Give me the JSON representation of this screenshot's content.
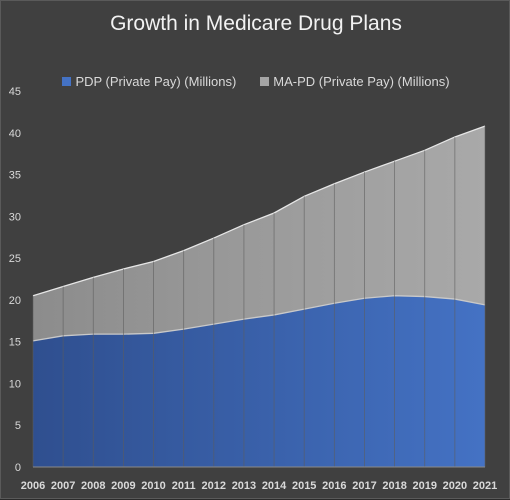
{
  "chart_data": {
    "type": "area",
    "stacked": true,
    "title": "Growth in Medicare Drug Plans",
    "xlabel": "",
    "ylabel": "",
    "ylim": [
      0,
      45
    ],
    "yticks": [
      0,
      5,
      10,
      15,
      20,
      25,
      30,
      35,
      40,
      45
    ],
    "categories": [
      "2006",
      "2007",
      "2008",
      "2009",
      "2010",
      "2011",
      "2012",
      "2013",
      "2014",
      "2015",
      "2016",
      "2017",
      "2018",
      "2019",
      "2020",
      "2021"
    ],
    "series": [
      {
        "name": "PDP (Private Pay) (Millions)",
        "color": "#4472c4",
        "values": [
          15.1,
          15.7,
          15.9,
          15.9,
          16.0,
          16.5,
          17.1,
          17.7,
          18.2,
          18.9,
          19.6,
          20.2,
          20.5,
          20.4,
          20.1,
          19.4
        ]
      },
      {
        "name": "MA-PD (Private Pay) (Millions)",
        "color": "#a5a5a5",
        "values": [
          5.4,
          5.9,
          6.8,
          7.8,
          8.6,
          9.4,
          10.3,
          11.3,
          12.2,
          13.5,
          14.3,
          15.1,
          16.1,
          17.5,
          19.4,
          21.4
        ]
      }
    ],
    "grid": "vertical",
    "legend_position": "top"
  }
}
